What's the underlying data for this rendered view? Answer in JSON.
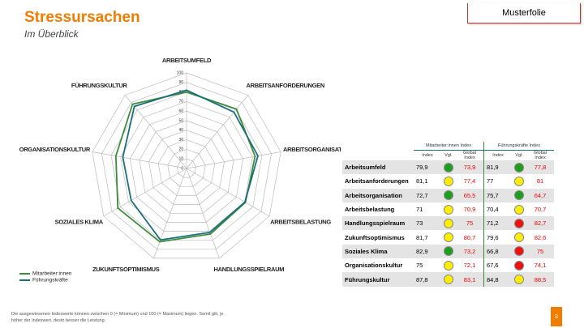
{
  "header": {
    "title": "Stressursachen",
    "subtitle": "Im Überblick",
    "badge": "Musterfolie"
  },
  "chart_data": {
    "type": "radar",
    "categories": [
      "ARBEITSUMFELD",
      "ARBEITSANFORDERUNGEN",
      "ARBEITSORGANISATION",
      "ARBEITSBELASTUNG",
      "HANDLUNGSSPIELRAUM",
      "ZUKUNFTSOPTIMISMUS",
      "SOZIALES KLIMA",
      "ORGANISATIONSKULTUR",
      "FÜHRUNGSKULTUR"
    ],
    "series": [
      {
        "name": "Mitarbeiter:innen",
        "color": "#3d8b3d",
        "values": [
          79.9,
          81.1,
          72.7,
          71,
          73,
          81.7,
          82.9,
          75,
          87.8
        ]
      },
      {
        "name": "Führungskräfte",
        "color": "#1b6f7d",
        "values": [
          81.9,
          77,
          75.7,
          70.4,
          71.2,
          79.6,
          66.8,
          67.6,
          84.8
        ]
      }
    ],
    "ylim": [
      0,
      100
    ],
    "yticks": [
      0,
      10,
      20,
      30,
      40,
      50,
      60,
      70,
      80,
      90,
      100
    ],
    "grid": true,
    "legend": "bottom-left"
  },
  "table": {
    "groups": [
      "Mitarbeiter:innen Index",
      "Führungskräfte Index"
    ],
    "columns": [
      "Index",
      "Vgl.",
      "Global Index"
    ],
    "rows": [
      {
        "label": "Arbeitsumfeld",
        "ma": {
          "index": "79,9",
          "light": "#1e9e1e",
          "global": "73,9"
        },
        "fk": {
          "index": "81,9",
          "light": "#1e9e1e",
          "global": "77,8"
        }
      },
      {
        "label": "Arbeitsanforderungen",
        "ma": {
          "index": "81,1",
          "light": "#ffee00",
          "global": "77,4"
        },
        "fk": {
          "index": "77",
          "light": "#ffee00",
          "global": "81"
        }
      },
      {
        "label": "Arbeitsorganisation",
        "ma": {
          "index": "72,7",
          "light": "#1e9e1e",
          "global": "65,5"
        },
        "fk": {
          "index": "75,7",
          "light": "#1e9e1e",
          "global": "64,7"
        }
      },
      {
        "label": "Arbeitsbelastung",
        "ma": {
          "index": "71",
          "light": "#ffee00",
          "global": "70,9"
        },
        "fk": {
          "index": "70,4",
          "light": "#ffee00",
          "global": "70,7"
        }
      },
      {
        "label": "Handlungsspielraum",
        "ma": {
          "index": "73",
          "light": "#ffee00",
          "global": "75"
        },
        "fk": {
          "index": "71,2",
          "light": "#ee1111",
          "global": "82,7"
        }
      },
      {
        "label": "Zukunftsoptimismus",
        "ma": {
          "index": "81,7",
          "light": "#ffee00",
          "global": "80,7"
        },
        "fk": {
          "index": "79,6",
          "light": "#ffee00",
          "global": "82,6"
        }
      },
      {
        "label": "Soziales Klima",
        "ma": {
          "index": "82,9",
          "light": "#1e9e1e",
          "global": "73,2"
        },
        "fk": {
          "index": "66,8",
          "light": "#ee1111",
          "global": "75"
        }
      },
      {
        "label": "Organisationskultur",
        "ma": {
          "index": "75",
          "light": "#ffee00",
          "global": "72,1"
        },
        "fk": {
          "index": "67,6",
          "light": "#ee1111",
          "global": "74,1"
        }
      },
      {
        "label": "Führungskultur",
        "ma": {
          "index": "87,8",
          "light": "#ffee00",
          "global": "83,1"
        },
        "fk": {
          "index": "84,8",
          "light": "#ffee00",
          "global": "88,5"
        }
      }
    ]
  },
  "footer": {
    "note": "Die ausgewiesenen Indexwerte können zwischen 0 (= Minimum) und 100 (= Maximum) liegen. Somit gilt, je höher der Indexwert, desto besser die Leistung.",
    "page": "3"
  }
}
